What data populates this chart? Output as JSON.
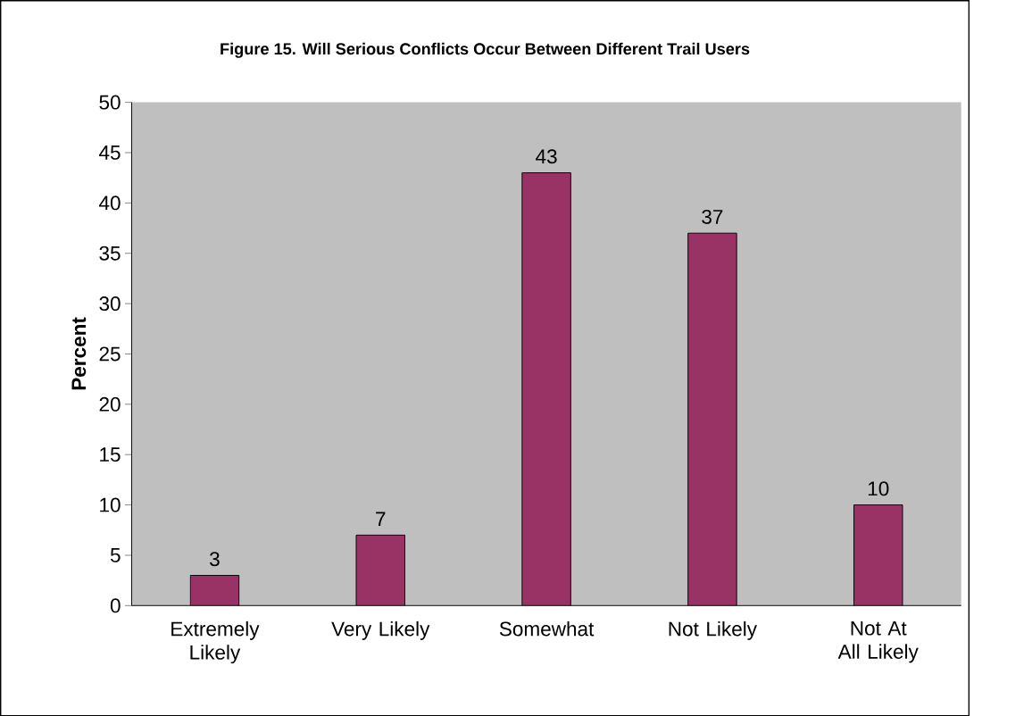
{
  "chart_data": {
    "type": "bar",
    "title": "Figure 15.  Will Serious Conflicts Occur Between Different Trail Users",
    "ylabel": "Percent",
    "categories": [
      "Extremely Likely",
      "Very Likely",
      "Somewhat",
      "Not Likely",
      "Not At All Likely"
    ],
    "values": [
      3,
      7,
      43,
      37,
      10
    ],
    "color": "#993366",
    "ylim": [
      0,
      50
    ],
    "yticks": [
      0,
      5,
      10,
      15,
      20,
      25,
      30,
      35,
      40,
      45,
      50
    ],
    "data_labels": true,
    "grid": false
  }
}
